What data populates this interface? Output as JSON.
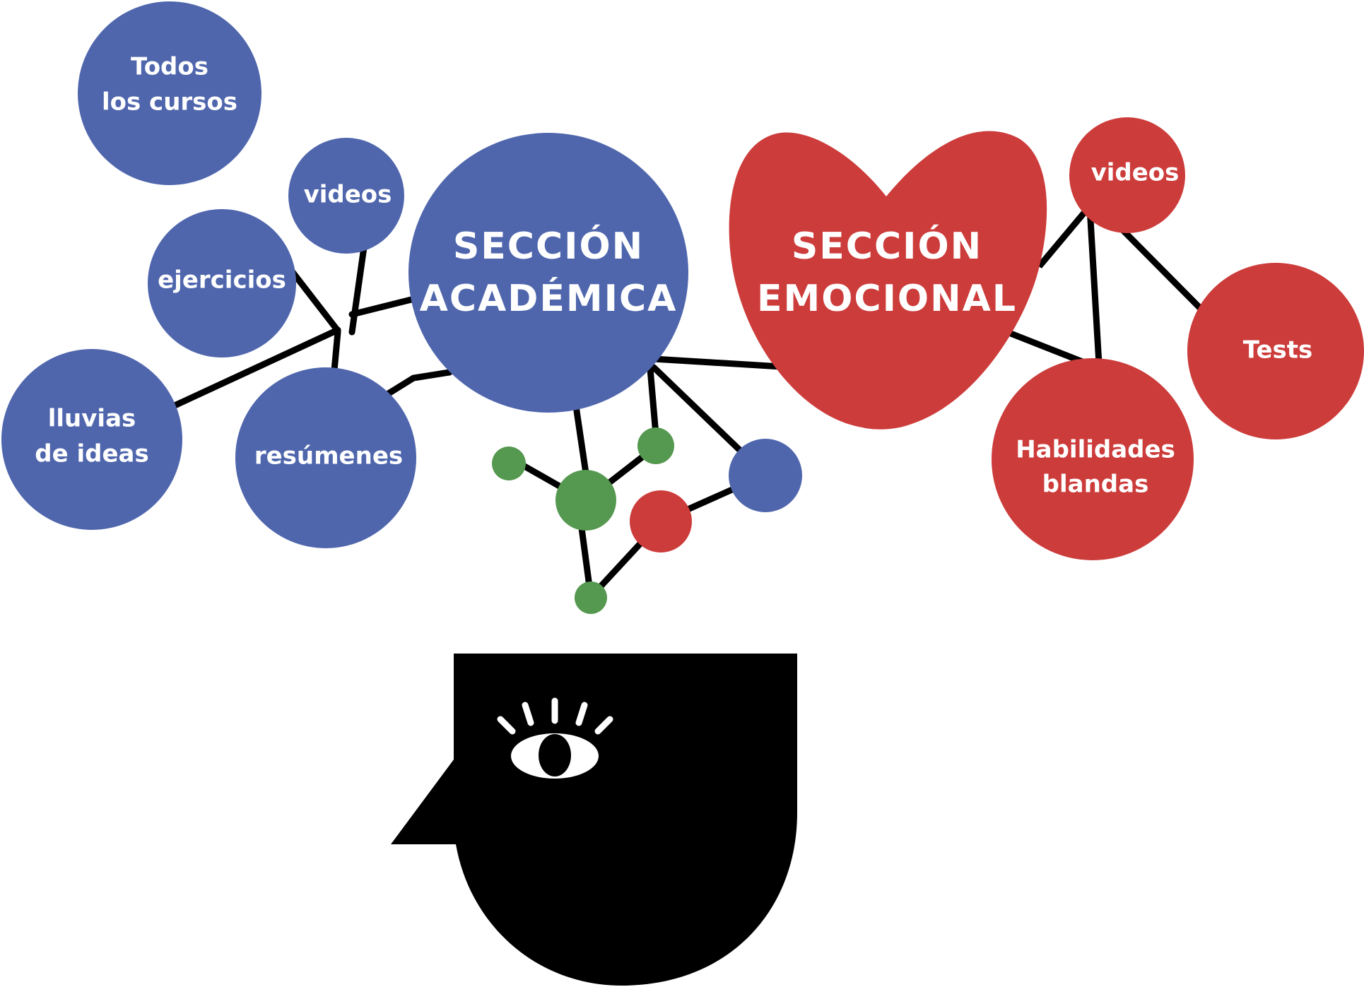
{
  "colors": {
    "academic": "#4f66ad",
    "emotional": "#cc3c3b",
    "molecule_green": "#55984f",
    "molecule_red": "#cc3c3b",
    "molecule_blue": "#4f66ad",
    "head": "#000000",
    "eye": "#ffffff"
  },
  "academic": {
    "main": {
      "line1": "SECCIÓN",
      "line2": "ACADÉMICA"
    },
    "todos": {
      "line1": "Todos",
      "line2": "los cursos"
    },
    "videos": {
      "label": "videos"
    },
    "ejercicios": {
      "label": "ejercicios"
    },
    "lluvias": {
      "line1": "lluvias",
      "line2": "de ideas"
    },
    "resumenes": {
      "label": "resúmenes"
    }
  },
  "emotional": {
    "main": {
      "line1": "SECCIÓN",
      "line2": "EMOCIONAL"
    },
    "videos": {
      "label": "videos"
    },
    "tests": {
      "label": "Tests"
    },
    "habilidades": {
      "line1": "Habilidades",
      "line2": "blandas"
    }
  },
  "icons": {
    "head": "head-silhouette-icon",
    "eye": "eye-icon",
    "heart": "heart-icon",
    "molecule": "molecule-icon"
  }
}
